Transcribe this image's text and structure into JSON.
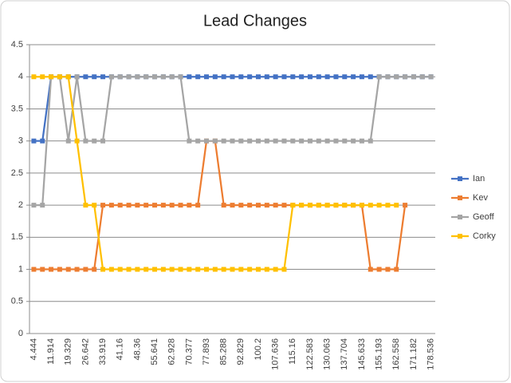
{
  "chart_data": {
    "type": "line",
    "title": "Lead Changes",
    "categories": [
      "4.444",
      null,
      "11.914",
      null,
      "19.329",
      null,
      "26.642",
      null,
      "33.919",
      null,
      "41.16",
      null,
      "48.36",
      null,
      "55.641",
      null,
      "62.928",
      null,
      "70.377",
      null,
      "77.893",
      null,
      "85.288",
      null,
      "92.829",
      null,
      "100.2",
      null,
      "107.636",
      null,
      "115.16",
      null,
      "122.583",
      null,
      "130.063",
      null,
      "137.704",
      null,
      "145.633",
      null,
      "155.193",
      null,
      "162.558",
      null,
      "171.182",
      null,
      "178.536"
    ],
    "series": [
      {
        "name": "Ian",
        "color": "#4472c4",
        "values": [
          3,
          3,
          4,
          4,
          4,
          4,
          4,
          4,
          4,
          4,
          4,
          4,
          4,
          4,
          4,
          4,
          4,
          4,
          4,
          4,
          4,
          4,
          4,
          4,
          4,
          4,
          4,
          4,
          4,
          4,
          4,
          4,
          4,
          4,
          4,
          4,
          4,
          4,
          4,
          4,
          4,
          4,
          4,
          4,
          4,
          4,
          4
        ]
      },
      {
        "name": "Kev",
        "color": "#ed7d31",
        "values": [
          1,
          1,
          1,
          1,
          1,
          1,
          1,
          1,
          2,
          2,
          2,
          2,
          2,
          2,
          2,
          2,
          2,
          2,
          2,
          2,
          3,
          3,
          2,
          2,
          2,
          2,
          2,
          2,
          2,
          2,
          2,
          2,
          2,
          2,
          2,
          2,
          2,
          2,
          2,
          1,
          1,
          1,
          1,
          2,
          null,
          null,
          null
        ]
      },
      {
        "name": "Geoff",
        "color": "#a5a5a5",
        "values": [
          2,
          2,
          4,
          4,
          3,
          4,
          3,
          3,
          3,
          4,
          4,
          4,
          4,
          4,
          4,
          4,
          4,
          4,
          3,
          3,
          3,
          3,
          3,
          3,
          3,
          3,
          3,
          3,
          3,
          3,
          3,
          3,
          3,
          3,
          3,
          3,
          3,
          3,
          3,
          3,
          4,
          4,
          4,
          4,
          4,
          4,
          4
        ]
      },
      {
        "name": "Corky",
        "color": "#ffc000",
        "values": [
          4,
          4,
          4,
          4,
          4,
          3,
          2,
          2,
          1,
          1,
          1,
          1,
          1,
          1,
          1,
          1,
          1,
          1,
          1,
          1,
          1,
          1,
          1,
          1,
          1,
          1,
          1,
          1,
          1,
          1,
          2,
          2,
          2,
          2,
          2,
          2,
          2,
          2,
          2,
          2,
          2,
          2,
          2,
          null,
          null,
          null,
          null
        ]
      }
    ],
    "ylim": [
      0,
      4.5
    ],
    "yticks": [
      0,
      0.5,
      1,
      1.5,
      2,
      2.5,
      3,
      3.5,
      4,
      4.5
    ],
    "grid": true,
    "legend": "right"
  }
}
